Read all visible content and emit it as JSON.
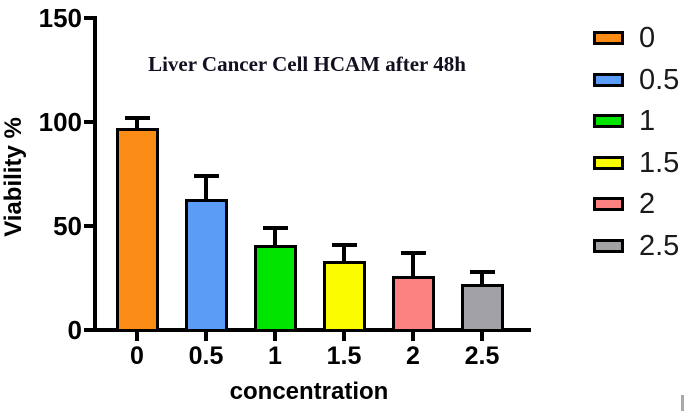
{
  "chart_data": {
    "type": "bar",
    "title": "Liver Cancer Cell HCAM after 48h",
    "xlabel": "concentration",
    "ylabel": "Viability %",
    "categories": [
      "0",
      "0.5",
      "1",
      "1.5",
      "2",
      "2.5"
    ],
    "values": [
      97,
      63,
      41,
      33,
      26,
      22
    ],
    "errors_plus": [
      6,
      12,
      9,
      9,
      12,
      7
    ],
    "bar_colors": [
      "#FA8C16",
      "#5B9CF6",
      "#00E400",
      "#FCFC00",
      "#FC8181",
      "#A2A1A6"
    ],
    "bar_border_color": "#000000",
    "axis_color": "#000000",
    "title_color": "#101020",
    "ylim": [
      0,
      150
    ],
    "yticks": [
      0,
      50,
      100,
      150
    ],
    "grid": false,
    "error_bars": "upper-only",
    "legend": {
      "position": "right",
      "entries": [
        {
          "label": "0",
          "color": "#FA8C16"
        },
        {
          "label": "0.5",
          "color": "#5B9CF6"
        },
        {
          "label": "1",
          "color": "#00E400"
        },
        {
          "label": "1.5",
          "color": "#FCFC00"
        },
        {
          "label": "2",
          "color": "#FC8181"
        },
        {
          "label": "2.5",
          "color": "#A2A1A6"
        }
      ]
    }
  },
  "misc": {
    "scrollbar_mark_color": "#A9A9A9"
  }
}
